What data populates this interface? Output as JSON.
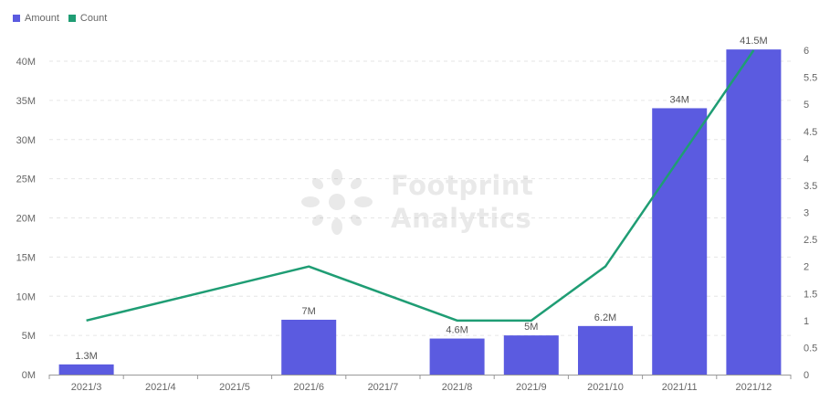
{
  "legend": {
    "amount_label": "Amount",
    "count_label": "Count"
  },
  "watermark": {
    "line1": "Footprint",
    "line2": "Analytics"
  },
  "colors": {
    "amount": "#5b5be0",
    "count": "#1f9d74",
    "axis_text": "#666666",
    "grid": "#e6e6e6",
    "data_label": "#555555"
  },
  "chart_data": {
    "type": "bar",
    "categories": [
      "2021/3",
      "2021/4",
      "2021/5",
      "2021/6",
      "2021/7",
      "2021/8",
      "2021/9",
      "2021/10",
      "2021/11",
      "2021/12"
    ],
    "series": [
      {
        "name": "Amount",
        "type": "bar",
        "axis": "left",
        "values": [
          1300000,
          0,
          0,
          7000000,
          0,
          4600000,
          5000000,
          6200000,
          34000000,
          41500000
        ],
        "labels": [
          "1.3M",
          "",
          "",
          "7M",
          "",
          "4.6M",
          "5M",
          "6.2M",
          "34M",
          "41.5M"
        ]
      },
      {
        "name": "Count",
        "type": "line",
        "axis": "right",
        "values": [
          1,
          null,
          null,
          2,
          null,
          1,
          1,
          2,
          4,
          6
        ]
      }
    ],
    "y_left": {
      "ylim": [
        0,
        40000000
      ],
      "ticks": [
        0,
        5000000,
        10000000,
        15000000,
        20000000,
        25000000,
        30000000,
        35000000,
        40000000
      ],
      "tick_labels": [
        "0M",
        "5M",
        "10M",
        "15M",
        "20M",
        "25M",
        "30M",
        "35M",
        "40M"
      ]
    },
    "y_right": {
      "ylim": [
        0,
        6
      ],
      "ticks": [
        0,
        0.5,
        1,
        1.5,
        2,
        2.5,
        3,
        3.5,
        4,
        4.5,
        5,
        5.5,
        6
      ],
      "tick_labels": [
        "0",
        "0.5",
        "1",
        "1.5",
        "2",
        "2.5",
        "3",
        "3.5",
        "4",
        "4.5",
        "5",
        "5.5",
        "6"
      ]
    },
    "grid": true,
    "legend_position": "top-left"
  }
}
